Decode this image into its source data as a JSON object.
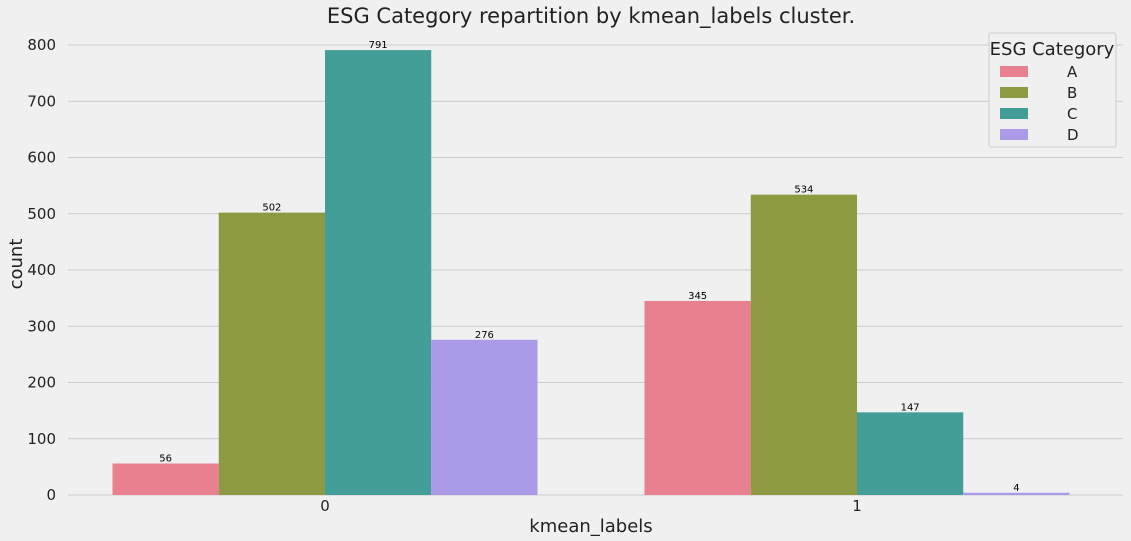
{
  "chart_data": {
    "type": "bar",
    "title": "ESG Category repartition by kmean_labels cluster.",
    "xlabel": "kmean_labels",
    "ylabel": "count",
    "categories": [
      "0",
      "1"
    ],
    "series": [
      {
        "name": "A",
        "values": [
          56,
          345
        ],
        "color": "#e8808f"
      },
      {
        "name": "B",
        "values": [
          502,
          534
        ],
        "color": "#8d9a41"
      },
      {
        "name": "C",
        "values": [
          791,
          147
        ],
        "color": "#449e98"
      },
      {
        "name": "D",
        "values": [
          276,
          4
        ],
        "color": "#ab9ae8"
      }
    ],
    "ylim": [
      0,
      800
    ],
    "yticks": [
      0,
      100,
      200,
      300,
      400,
      500,
      600,
      700,
      800
    ],
    "grid": "horizontal",
    "legend": {
      "title": "ESG Category",
      "placement": "top-right"
    },
    "data_labels": true
  }
}
